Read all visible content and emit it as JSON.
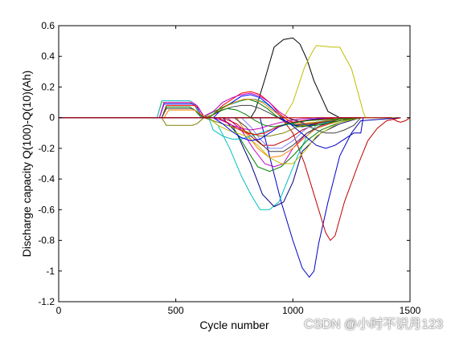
{
  "watermark": "CSDN @小时不识月123",
  "chart_data": {
    "type": "line",
    "title": "",
    "xlabel": "Cycle number",
    "ylabel": "Discharge capacity Q(100)-Q(10)(Ah)",
    "xlim": [
      0,
      1500
    ],
    "ylim": [
      -1.2,
      0.6
    ],
    "xticks": [
      0,
      500,
      1000,
      1500
    ],
    "yticks": [
      -1.2,
      -1,
      -0.8,
      -0.6,
      -0.4,
      -0.2,
      0,
      0.2,
      0.4,
      0.6
    ],
    "grid": false,
    "series": [
      {
        "color": "#000000",
        "x": [
          0,
          820,
          840,
          880,
          920,
          960,
          1000,
          1030,
          1060,
          1090,
          1150,
          1200,
          1270,
          1300,
          1460
        ],
        "y": [
          0,
          0,
          0.05,
          0.25,
          0.46,
          0.51,
          0.52,
          0.48,
          0.38,
          0.24,
          0.04,
          0.0,
          0.0,
          0.0,
          0.0
        ]
      },
      {
        "color": "#bfbf00",
        "x": [
          0,
          900,
          960,
          1000,
          1050,
          1080,
          1100,
          1170,
          1200,
          1250,
          1300,
          1310,
          1460
        ],
        "y": [
          0,
          0,
          0.0,
          0.1,
          0.33,
          0.42,
          0.47,
          0.46,
          0.46,
          0.32,
          0.04,
          0.0,
          0.0
        ]
      },
      {
        "color": "#0000bf",
        "x": [
          0,
          860,
          900,
          950,
          1000,
          1040,
          1070,
          1090,
          1110,
          1150,
          1200,
          1250,
          1290,
          1460
        ],
        "y": [
          0,
          0,
          -0.25,
          -0.55,
          -0.8,
          -0.98,
          -1.04,
          -1.0,
          -0.82,
          -0.55,
          -0.25,
          -0.1,
          -0.02,
          0.0
        ]
      },
      {
        "color": "#bf0000",
        "x": [
          0,
          950,
          1000,
          1050,
          1100,
          1140,
          1160,
          1180,
          1220,
          1280,
          1320,
          1360,
          1400,
          1460
        ],
        "y": [
          0,
          0,
          -0.1,
          -0.3,
          -0.55,
          -0.75,
          -0.8,
          -0.77,
          -0.55,
          -0.3,
          -0.15,
          -0.07,
          -0.02,
          0.0
        ]
      },
      {
        "color": "#00bfbf",
        "x": [
          0,
          640,
          680,
          730,
          780,
          820,
          860,
          900,
          940,
          980,
          1020,
          1060,
          1100,
          1200,
          1290
        ],
        "y": [
          0,
          0,
          -0.05,
          -0.2,
          -0.38,
          -0.5,
          -0.6,
          -0.6,
          -0.55,
          -0.4,
          -0.25,
          -0.12,
          -0.05,
          -0.01,
          0.0
        ]
      },
      {
        "color": "#000080",
        "x": [
          0,
          700,
          760,
          820,
          870,
          920,
          960,
          1000,
          1040,
          1120,
          1200,
          1290
        ],
        "y": [
          0,
          0,
          -0.1,
          -0.3,
          -0.5,
          -0.58,
          -0.55,
          -0.42,
          -0.22,
          -0.1,
          -0.04,
          0.0
        ]
      },
      {
        "color": "#008000",
        "x": [
          0,
          680,
          740,
          800,
          850,
          900,
          950,
          1000,
          1060,
          1120,
          1200,
          1290
        ],
        "y": [
          0,
          0,
          -0.05,
          -0.2,
          -0.32,
          -0.35,
          -0.32,
          -0.25,
          -0.15,
          -0.08,
          -0.03,
          0.0
        ]
      },
      {
        "color": "#bf00bf",
        "x": [
          0,
          720,
          780,
          830,
          880,
          920,
          960,
          1000,
          1060,
          1130,
          1200,
          1290
        ],
        "y": [
          0,
          0,
          -0.08,
          -0.2,
          -0.3,
          -0.32,
          -0.3,
          -0.2,
          -0.1,
          -0.05,
          -0.02,
          0.0
        ]
      },
      {
        "color": "#ff8000",
        "x": [
          0,
          760,
          800,
          850,
          900,
          950,
          1000,
          1050,
          1100,
          1200,
          1290
        ],
        "y": [
          0,
          0,
          -0.1,
          -0.2,
          -0.26,
          -0.25,
          -0.2,
          -0.13,
          -0.07,
          -0.02,
          0.0
        ]
      },
      {
        "color": "#404040",
        "x": [
          0,
          750,
          800,
          850,
          900,
          960,
          1000,
          1060,
          1120,
          1200,
          1290
        ],
        "y": [
          0,
          0,
          -0.06,
          -0.15,
          -0.22,
          -0.22,
          -0.18,
          -0.1,
          -0.05,
          -0.01,
          0.0
        ]
      },
      {
        "color": "#bf0000",
        "x": [
          0,
          700,
          760,
          820,
          870,
          920,
          980,
          1040,
          1120,
          1200,
          1290
        ],
        "y": [
          0,
          0,
          -0.04,
          -0.12,
          -0.18,
          -0.18,
          -0.14,
          -0.08,
          -0.03,
          -0.01,
          0.0
        ]
      },
      {
        "color": "#8080ff",
        "x": [
          0,
          780,
          820,
          860,
          900,
          950,
          1000,
          1050,
          1100,
          1200,
          1290
        ],
        "y": [
          0,
          0,
          -0.06,
          -0.14,
          -0.2,
          -0.2,
          -0.15,
          -0.08,
          -0.03,
          -0.01,
          0.0
        ]
      },
      {
        "color": "#bfbf00",
        "x": [
          0,
          420,
          440,
          560,
          580,
          600,
          640,
          680,
          720,
          760,
          800,
          850,
          900,
          950,
          1000,
          1050,
          1100,
          1200,
          1290
        ],
        "y": [
          0,
          0,
          0.1,
          0.1,
          0.08,
          0.02,
          0.0,
          -0.05,
          -0.08,
          -0.1,
          -0.12,
          -0.18,
          -0.26,
          -0.3,
          -0.3,
          -0.22,
          -0.12,
          -0.03,
          0.0
        ]
      },
      {
        "color": "#00bfbf",
        "x": [
          0,
          420,
          440,
          560,
          580,
          600,
          640,
          680,
          720,
          760,
          800,
          840,
          880,
          920,
          960,
          1000,
          1100,
          1200,
          1290
        ],
        "y": [
          0,
          0,
          0.11,
          0.11,
          0.09,
          0.02,
          0.0,
          0.05,
          0.08,
          0.1,
          0.12,
          0.12,
          0.1,
          0.05,
          -0.02,
          -0.05,
          -0.03,
          -0.01,
          0.0
        ]
      },
      {
        "color": "#0000ff",
        "x": [
          0,
          430,
          450,
          570,
          590,
          610,
          660,
          700,
          740,
          780,
          820,
          860,
          900,
          940,
          980,
          1040,
          1100,
          1200,
          1290
        ],
        "y": [
          0,
          0,
          0.09,
          0.09,
          0.07,
          0.01,
          0.0,
          0.06,
          0.1,
          0.14,
          0.15,
          0.13,
          0.08,
          0.02,
          -0.04,
          -0.06,
          -0.04,
          -0.01,
          0.0
        ]
      },
      {
        "color": "#ff0000",
        "x": [
          0,
          440,
          460,
          580,
          600,
          620,
          660,
          700,
          740,
          780,
          820,
          860,
          900,
          940,
          980,
          1040,
          1120,
          1200,
          1290
        ],
        "y": [
          0,
          0,
          0.08,
          0.08,
          0.06,
          0.0,
          0.02,
          0.08,
          0.12,
          0.16,
          0.17,
          0.15,
          0.1,
          0.03,
          -0.02,
          -0.05,
          -0.03,
          -0.01,
          0.0
        ]
      },
      {
        "color": "#008000",
        "x": [
          0,
          440,
          460,
          560,
          580,
          610,
          650,
          690,
          730,
          770,
          810,
          850,
          890,
          930,
          970,
          1020,
          1100,
          1200,
          1290
        ],
        "y": [
          0,
          0,
          0.07,
          0.07,
          0.05,
          0.0,
          0.03,
          0.06,
          0.09,
          0.11,
          0.12,
          0.1,
          0.06,
          0.01,
          -0.03,
          -0.06,
          -0.05,
          -0.02,
          0.0
        ]
      },
      {
        "color": "#bf00bf",
        "x": [
          0,
          430,
          450,
          570,
          590,
          620,
          660,
          700,
          740,
          780,
          820,
          860,
          900,
          940,
          990,
          1060,
          1140,
          1200,
          1290
        ],
        "y": [
          0,
          0,
          0.1,
          0.1,
          0.08,
          0.01,
          0.04,
          0.1,
          0.13,
          0.15,
          0.16,
          0.14,
          0.1,
          0.04,
          -0.01,
          -0.04,
          -0.02,
          -0.01,
          0.0
        ]
      },
      {
        "color": "#404040",
        "x": [
          0,
          440,
          460,
          570,
          590,
          620,
          660,
          700,
          740,
          780,
          820,
          860,
          900,
          960,
          1020,
          1100,
          1200,
          1290
        ],
        "y": [
          0,
          0,
          0.06,
          0.06,
          0.04,
          0.0,
          0.02,
          0.05,
          0.07,
          0.08,
          0.08,
          0.06,
          0.03,
          -0.02,
          -0.05,
          -0.04,
          -0.01,
          0.0
        ]
      },
      {
        "color": "#ff8000",
        "x": [
          0,
          450,
          470,
          580,
          600,
          630,
          670,
          710,
          750,
          790,
          830,
          870,
          910,
          960,
          1020,
          1100,
          1200,
          1290
        ],
        "y": [
          0,
          0,
          0.05,
          0.05,
          0.03,
          0.0,
          0.03,
          0.07,
          0.1,
          0.12,
          0.12,
          0.1,
          0.05,
          0.0,
          -0.04,
          -0.03,
          -0.01,
          0.0
        ]
      },
      {
        "color": "#808000",
        "x": [
          0,
          440,
          460,
          570,
          590,
          620,
          660,
          700,
          740,
          780,
          820,
          860,
          900,
          960,
          1020,
          1100,
          1200,
          1290
        ],
        "y": [
          0,
          0,
          -0.05,
          -0.05,
          -0.04,
          0.0,
          -0.02,
          -0.04,
          -0.06,
          -0.08,
          -0.1,
          -0.12,
          -0.12,
          -0.1,
          -0.06,
          -0.03,
          -0.01,
          0.0
        ]
      },
      {
        "color": "#00bfbf",
        "x": [
          0,
          640,
          660,
          700,
          740,
          780,
          820,
          860,
          900,
          960,
          1020,
          1100,
          1200,
          1290
        ],
        "y": [
          0,
          0,
          -0.08,
          -0.12,
          -0.14,
          -0.14,
          -0.12,
          -0.1,
          -0.08,
          -0.05,
          -0.03,
          -0.01,
          0.0,
          0.0
        ]
      },
      {
        "color": "#0000ff",
        "x": [
          0,
          660,
          700,
          740,
          780,
          820,
          860,
          900,
          940,
          1000,
          1080,
          1160,
          1290
        ],
        "y": [
          0,
          0,
          -0.04,
          -0.09,
          -0.13,
          -0.15,
          -0.14,
          -0.1,
          -0.06,
          -0.03,
          -0.01,
          0.0,
          0.0
        ]
      },
      {
        "color": "#ff0000",
        "x": [
          0,
          680,
          720,
          760,
          800,
          840,
          880,
          920,
          970,
          1040,
          1120,
          1200,
          1290
        ],
        "y": [
          0,
          0,
          -0.03,
          -0.07,
          -0.1,
          -0.11,
          -0.1,
          -0.07,
          -0.04,
          -0.02,
          -0.01,
          0.0,
          0.0
        ]
      },
      {
        "color": "#008000",
        "x": [
          0,
          640,
          680,
          720,
          760,
          800,
          840,
          880,
          920,
          980,
          1060,
          1160,
          1290
        ],
        "y": [
          0,
          0,
          0.04,
          0.06,
          0.05,
          0.02,
          -0.02,
          -0.05,
          -0.06,
          -0.04,
          -0.02,
          -0.01,
          0.0
        ]
      },
      {
        "color": "#bf00bf",
        "x": [
          0,
          660,
          700,
          740,
          780,
          820,
          860,
          900,
          950,
          1020,
          1100,
          1200,
          1290
        ],
        "y": [
          0,
          0,
          -0.02,
          -0.05,
          -0.07,
          -0.08,
          -0.07,
          -0.05,
          -0.03,
          -0.01,
          0.0,
          0.0,
          0.0
        ]
      },
      {
        "color": "#0000bf",
        "x": [
          0,
          940,
          980,
          1020,
          1060,
          1100,
          1140,
          1180,
          1220,
          1260,
          1290,
          1300
        ],
        "y": [
          0,
          0,
          -0.03,
          -0.08,
          -0.13,
          -0.18,
          -0.2,
          -0.18,
          -0.14,
          -0.1,
          -0.1,
          0.0
        ]
      },
      {
        "color": "#404040",
        "x": [
          0,
          980,
          1020,
          1060,
          1100,
          1140,
          1180,
          1220,
          1260,
          1290
        ],
        "y": [
          0,
          0,
          -0.02,
          -0.05,
          -0.08,
          -0.1,
          -0.1,
          -0.08,
          -0.05,
          0.0
        ]
      },
      {
        "color": "#bf0000",
        "x": [
          0,
          1420,
          1440,
          1460,
          1480,
          1500
        ],
        "y": [
          0,
          0,
          -0.02,
          -0.03,
          -0.02,
          0.0
        ]
      }
    ]
  }
}
